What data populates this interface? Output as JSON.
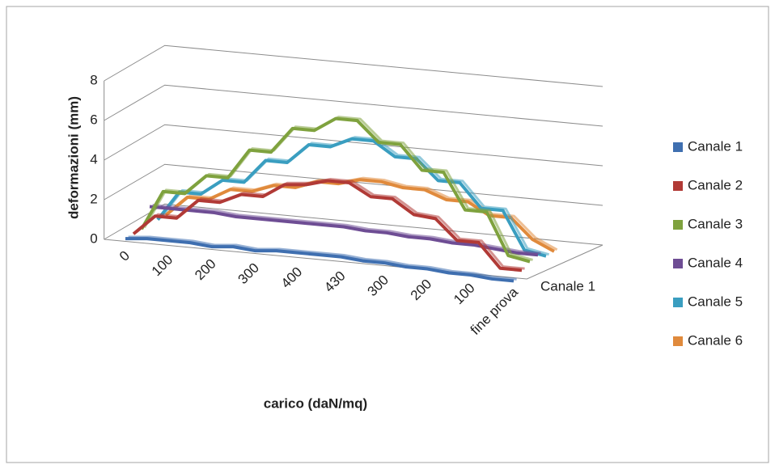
{
  "chart_data": {
    "type": "line3d",
    "y_label": "deformazioni (mm)",
    "x_label": "carico (daN/mq)",
    "categories": [
      "0",
      null,
      "100",
      null,
      "200",
      null,
      "300",
      null,
      "400",
      null,
      "430",
      null,
      "300",
      null,
      "200",
      null,
      "100",
      null,
      "fine prova"
    ],
    "depth_label": "Canale 1",
    "ylim": [
      0,
      8
    ],
    "yticks": [
      0,
      2,
      4,
      6,
      8
    ],
    "grid": true,
    "legend": "right",
    "series": [
      {
        "name": "Canale 1",
        "color": "#3f6fb0",
        "values": [
          0,
          0.1,
          0.1,
          0.1,
          0,
          0.1,
          0,
          0.1,
          0.1,
          0.1,
          0.1,
          0,
          0,
          -0.1,
          -0.1,
          -0.2,
          -0.2,
          -0.3,
          -0.3
        ]
      },
      {
        "name": "Canale 2",
        "color": "#b13a36",
        "values": [
          0,
          1,
          1,
          2,
          2,
          2.5,
          2.5,
          3.2,
          3.3,
          3.6,
          3.6,
          3,
          3,
          2.3,
          2.2,
          1.2,
          1.2,
          0,
          0
        ]
      },
      {
        "name": "Canale 3",
        "color": "#7fa23e",
        "values": [
          0,
          2,
          2,
          3,
          3,
          4.5,
          4.5,
          5.8,
          5.8,
          6.5,
          6.5,
          5.5,
          5.5,
          4.3,
          4.3,
          2.5,
          2.5,
          0.4,
          0.2
        ]
      },
      {
        "name": "Canale 4",
        "color": "#6e4d94",
        "values": [
          0.9,
          0.9,
          0.9,
          0.9,
          0.8,
          0.8,
          0.8,
          0.8,
          0.8,
          0.8,
          0.7,
          0.7,
          0.6,
          0.6,
          0.5,
          0.5,
          0.4,
          0.3,
          0.3
        ]
      },
      {
        "name": "Canale 5",
        "color": "#3a9ec0",
        "values": [
          0,
          1.5,
          1.5,
          2.3,
          2.3,
          3.5,
          3.5,
          4.5,
          4.5,
          5,
          5,
          4.3,
          4.3,
          3.3,
          3.3,
          2.1,
          2.1,
          0.2,
          0
        ]
      },
      {
        "name": "Canale 6",
        "color": "#e08a3c",
        "values": [
          0,
          1,
          1,
          1.6,
          1.6,
          2,
          2,
          2.4,
          2.4,
          2.7,
          2.7,
          2.5,
          2.5,
          2.1,
          2.1,
          1.5,
          1.5,
          0.5,
          0
        ]
      }
    ]
  }
}
